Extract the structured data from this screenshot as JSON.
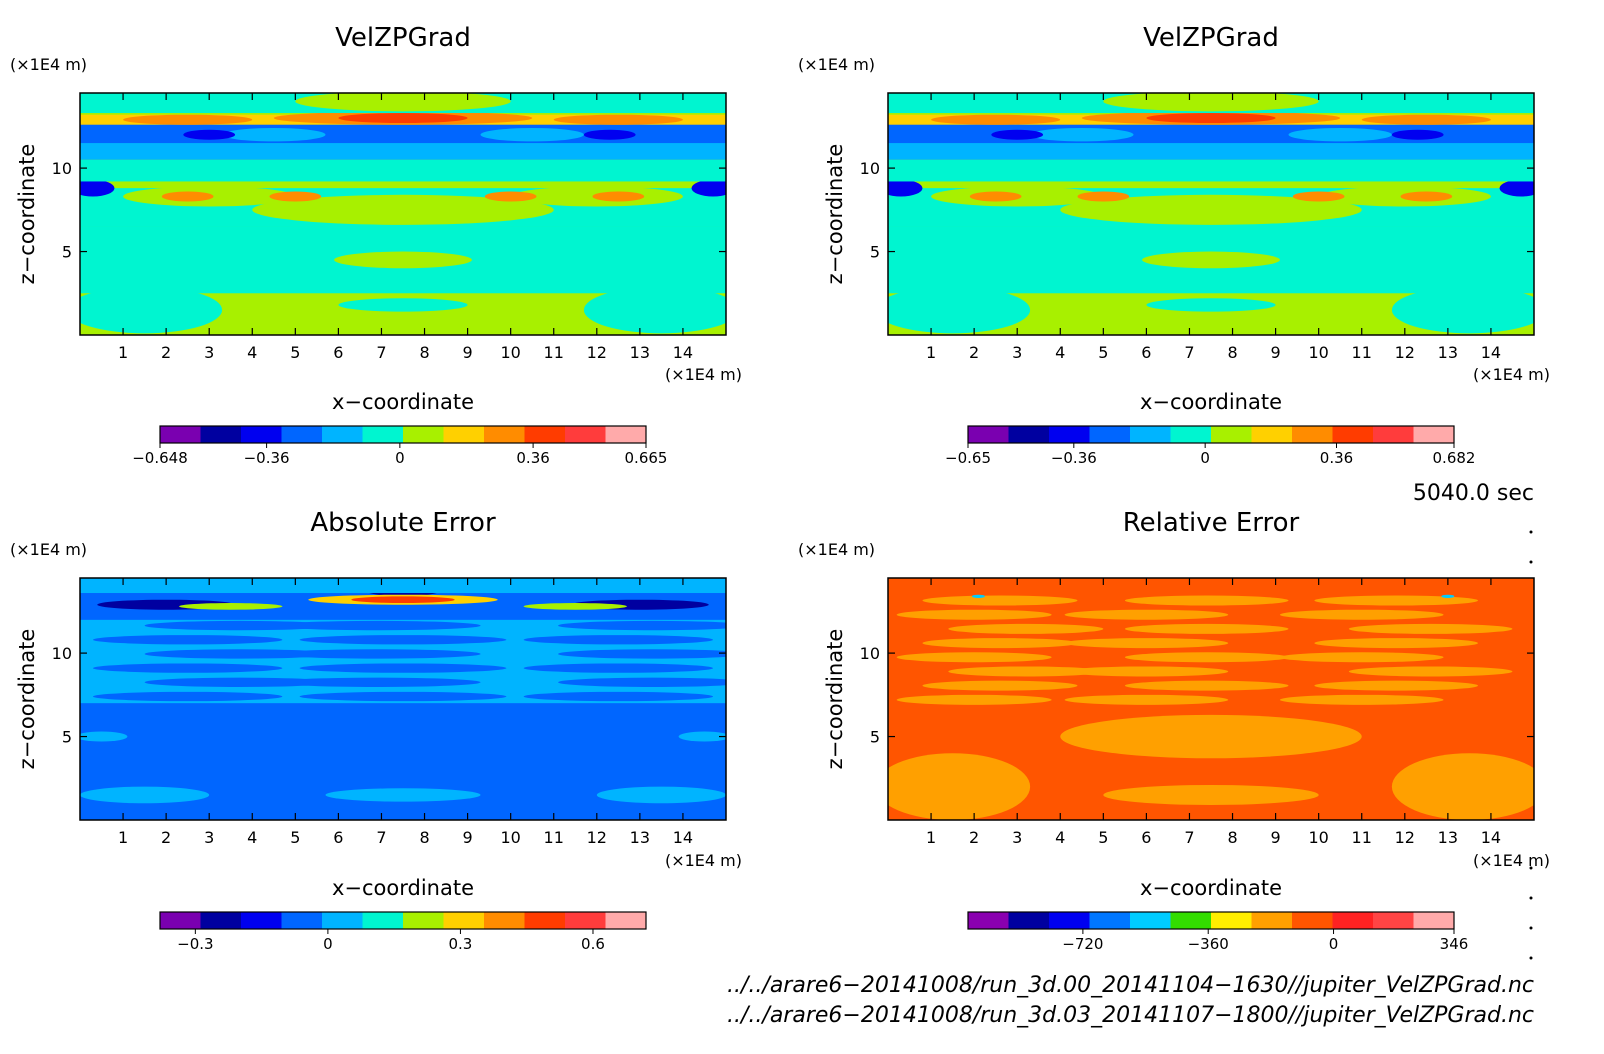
{
  "colors": {
    "jet12": [
      "#7a00b0",
      "#0000a0",
      "#0000f0",
      "#0066ff",
      "#00b4ff",
      "#00f5d0",
      "#a8f000",
      "#ffd000",
      "#ff8c00",
      "#ff3c00",
      "#ff3c3c",
      "#ffaaaa"
    ],
    "rel12": [
      "#8a00b0",
      "#0000a0",
      "#0000f0",
      "#0077ff",
      "#00ccff",
      "#33dd00",
      "#ffee00",
      "#ffa000",
      "#ff5500",
      "#ff2222",
      "#ff4444",
      "#ffaaaa"
    ]
  },
  "chart_data": [
    {
      "type": "heatmap",
      "title": "VelZPGrad",
      "xlabel": "x−coordinate",
      "ylabel": "z−coordinate",
      "xunit": "(×1E4 m)",
      "yunit": "(×1E4 m)",
      "xlim": [
        0,
        15
      ],
      "ylim": [
        0,
        14.5
      ],
      "xticks": [
        "1",
        "2",
        "3",
        "4",
        "5",
        "6",
        "7",
        "8",
        "9",
        "10",
        "11",
        "12",
        "13",
        "14"
      ],
      "yticks": [
        "5",
        "10"
      ],
      "colorbar": {
        "min": -0.648,
        "max": 0.665,
        "ticks": [
          "−0.648",
          "−0.36",
          "0",
          "0.36",
          "0.665"
        ],
        "tick_values": [
          -0.648,
          -0.36,
          0,
          0.36,
          0.665
        ]
      },
      "dominant_value": 0.05
    },
    {
      "type": "heatmap",
      "title": "VelZPGrad",
      "xlabel": "x−coordinate",
      "ylabel": "z−coordinate",
      "xunit": "(×1E4 m)",
      "yunit": "(×1E4 m)",
      "xlim": [
        0,
        15
      ],
      "ylim": [
        0,
        14.5
      ],
      "xticks": [
        "1",
        "2",
        "3",
        "4",
        "5",
        "6",
        "7",
        "8",
        "9",
        "10",
        "11",
        "12",
        "13",
        "14"
      ],
      "yticks": [
        "5",
        "10"
      ],
      "colorbar": {
        "min": -0.65,
        "max": 0.682,
        "ticks": [
          "−0.65",
          "−0.36",
          "0",
          "0.36",
          "0.682"
        ],
        "tick_values": [
          -0.65,
          -0.36,
          0,
          0.36,
          0.682
        ]
      },
      "dominant_value": 0.05
    },
    {
      "type": "heatmap",
      "title": "Absolute Error",
      "xlabel": "x−coordinate",
      "ylabel": "z−coordinate",
      "xunit": "(×1E4 m)",
      "yunit": "(×1E4 m)",
      "xlim": [
        0,
        15
      ],
      "ylim": [
        0,
        14.5
      ],
      "xticks": [
        "1",
        "2",
        "3",
        "4",
        "5",
        "6",
        "7",
        "8",
        "9",
        "10",
        "11",
        "12",
        "13",
        "14"
      ],
      "yticks": [
        "5",
        "10"
      ],
      "colorbar": {
        "min": -0.38,
        "max": 0.72,
        "ticks": [
          "−0.3",
          "0",
          "0.3",
          "0.6"
        ],
        "tick_values": [
          -0.3,
          0,
          0.3,
          0.6
        ]
      },
      "dominant_value": 0.0
    },
    {
      "type": "heatmap",
      "title": "Relative Error",
      "xlabel": "x−coordinate",
      "ylabel": "z−coordinate",
      "xunit": "(×1E4 m)",
      "yunit": "(×1E4 m)",
      "xlim": [
        0,
        15
      ],
      "ylim": [
        0,
        14.5
      ],
      "xticks": [
        "1",
        "2",
        "3",
        "4",
        "5",
        "6",
        "7",
        "8",
        "9",
        "10",
        "11",
        "12",
        "13",
        "14"
      ],
      "yticks": [
        "5",
        "10"
      ],
      "colorbar": {
        "min": -1050,
        "max": 346,
        "ticks": [
          "−720",
          "−360",
          "0",
          "346"
        ],
        "tick_values": [
          -720,
          -360,
          0,
          346
        ]
      },
      "dominant_value": 0
    }
  ],
  "time_label": "5040.0 sec",
  "file_paths": [
    "../../arare6−20141008/run_3d.00_20141104−1630//jupiter_VelZPGrad.nc",
    "../../arare6−20141008/run_3d.03_20141107−1800//jupiter_VelZPGrad.nc"
  ]
}
